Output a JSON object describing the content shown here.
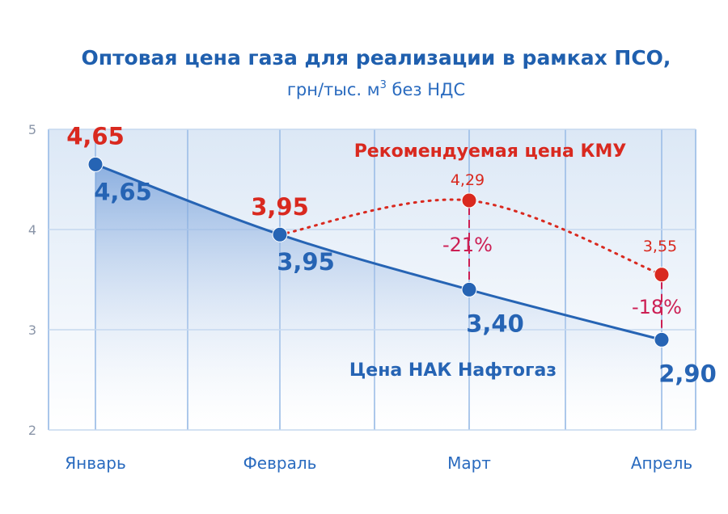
{
  "chart_data": {
    "type": "line",
    "title": "Оптовая цена газа для реализации в рамках ПСО,",
    "subtitle_main": "грн/тыс. м",
    "subtitle_sup": "3",
    "subtitle_rest": " без НДС",
    "categories": [
      "Январь",
      "Февраль",
      "Март",
      "Апрель"
    ],
    "ylim": [
      2,
      5
    ],
    "yticks": [
      "2",
      "3",
      "4",
      "5"
    ],
    "grid": true,
    "series": [
      {
        "name": "Цена НАК Нафтогаз",
        "values": [
          4.65,
          3.95,
          3.4,
          2.9
        ],
        "labels": [
          "4,65",
          "3,95",
          "3,40",
          "2,90"
        ],
        "color": "#2664b4"
      },
      {
        "name": "Рекомендуемая цена КМУ",
        "values": [
          4.65,
          3.95,
          4.29,
          3.55
        ],
        "labels": [
          "4,65",
          "3,95",
          "4,29",
          "3,55"
        ],
        "color": "#d9291f"
      }
    ],
    "annotations": [
      {
        "category": "Март",
        "text": "-21%"
      },
      {
        "category": "Апрель",
        "text": "-18%"
      }
    ],
    "colors": {
      "plot_bg": "#dce8f6",
      "grid_line": "#a9c6ea",
      "area_top": "#7fa8de",
      "pct": "#cc1f54"
    }
  }
}
